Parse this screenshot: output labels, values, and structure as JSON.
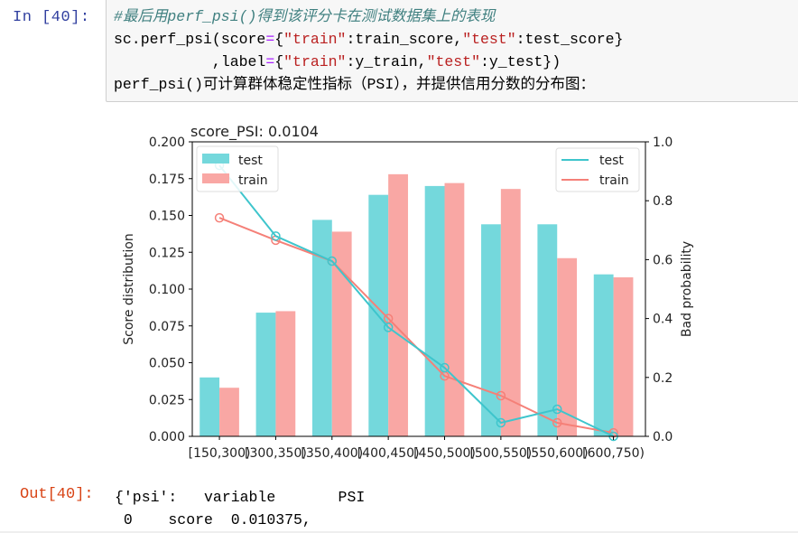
{
  "input_cell": {
    "prompt": "In  [40]:",
    "lines": {
      "comment": "#最后用perf_psi()得到该评分卡在测试数据集上的表现",
      "line2_a": "sc.perf_psi(score",
      "line2_eq": "=",
      "line2_b": "{",
      "line2_s1": "\"train\"",
      "line2_c": ":train_score,",
      "line2_s2": "\"test\"",
      "line2_d": ":test_score}",
      "line3_a": "           ,label",
      "line3_eq": "=",
      "line3_b": "{",
      "line3_s1": "\"train\"",
      "line3_c": ":y_train,",
      "line3_s2": "\"test\"",
      "line3_d": ":y_test})",
      "line4": "perf_psi()可计算群体稳定性指标（PSI），并提供信用分数的分布图："
    }
  },
  "output_cell": {
    "prompt": "Out[40]:",
    "line1": "{'psi':   variable       PSI",
    "line2": " 0    score  0.010375,"
  },
  "colors": {
    "test": "#74d8dc",
    "train": "#f9a7a4",
    "test_line": "#3ec5cc",
    "train_line": "#f58078",
    "prompt_in": "#303f9f",
    "prompt_out": "#d84315"
  },
  "chart_data": {
    "type": "bar",
    "title": "score_PSI: 0.0104",
    "xlabel": "",
    "ylabel": "Score distribution",
    "y2label": "Bad probability",
    "categories": [
      "[150,300)",
      "[300,350)",
      "[350,400)",
      "[400,450)",
      "[450,500)",
      "[500,550)",
      "[550,600)",
      "[600,750)"
    ],
    "ylim": [
      0,
      0.2
    ],
    "y2lim": [
      0,
      1.0
    ],
    "yticks": [
      "0.000",
      "0.025",
      "0.050",
      "0.075",
      "0.100",
      "0.125",
      "0.150",
      "0.175",
      "0.200"
    ],
    "y2ticks": [
      "0.0",
      "0.2",
      "0.4",
      "0.6",
      "0.8",
      "1.0"
    ],
    "series": [
      {
        "name": "test",
        "kind": "bar",
        "values": [
          0.04,
          0.084,
          0.147,
          0.164,
          0.17,
          0.144,
          0.144,
          0.11
        ]
      },
      {
        "name": "train",
        "kind": "bar",
        "values": [
          0.033,
          0.085,
          0.139,
          0.178,
          0.172,
          0.168,
          0.121,
          0.108
        ]
      },
      {
        "name": "test",
        "kind": "line",
        "axis": "right",
        "values": [
          0.92,
          0.68,
          0.595,
          0.37,
          0.233,
          0.046,
          0.092,
          0.0
        ]
      },
      {
        "name": "train",
        "kind": "line",
        "axis": "right",
        "values": [
          0.742,
          0.666,
          0.595,
          0.4,
          0.205,
          0.138,
          0.046,
          0.012
        ]
      }
    ],
    "legends": {
      "bars": {
        "position": "upper left",
        "entries": [
          "test",
          "train"
        ]
      },
      "lines": {
        "position": "upper right",
        "entries": [
          "test",
          "train"
        ]
      }
    },
    "grid": false
  }
}
